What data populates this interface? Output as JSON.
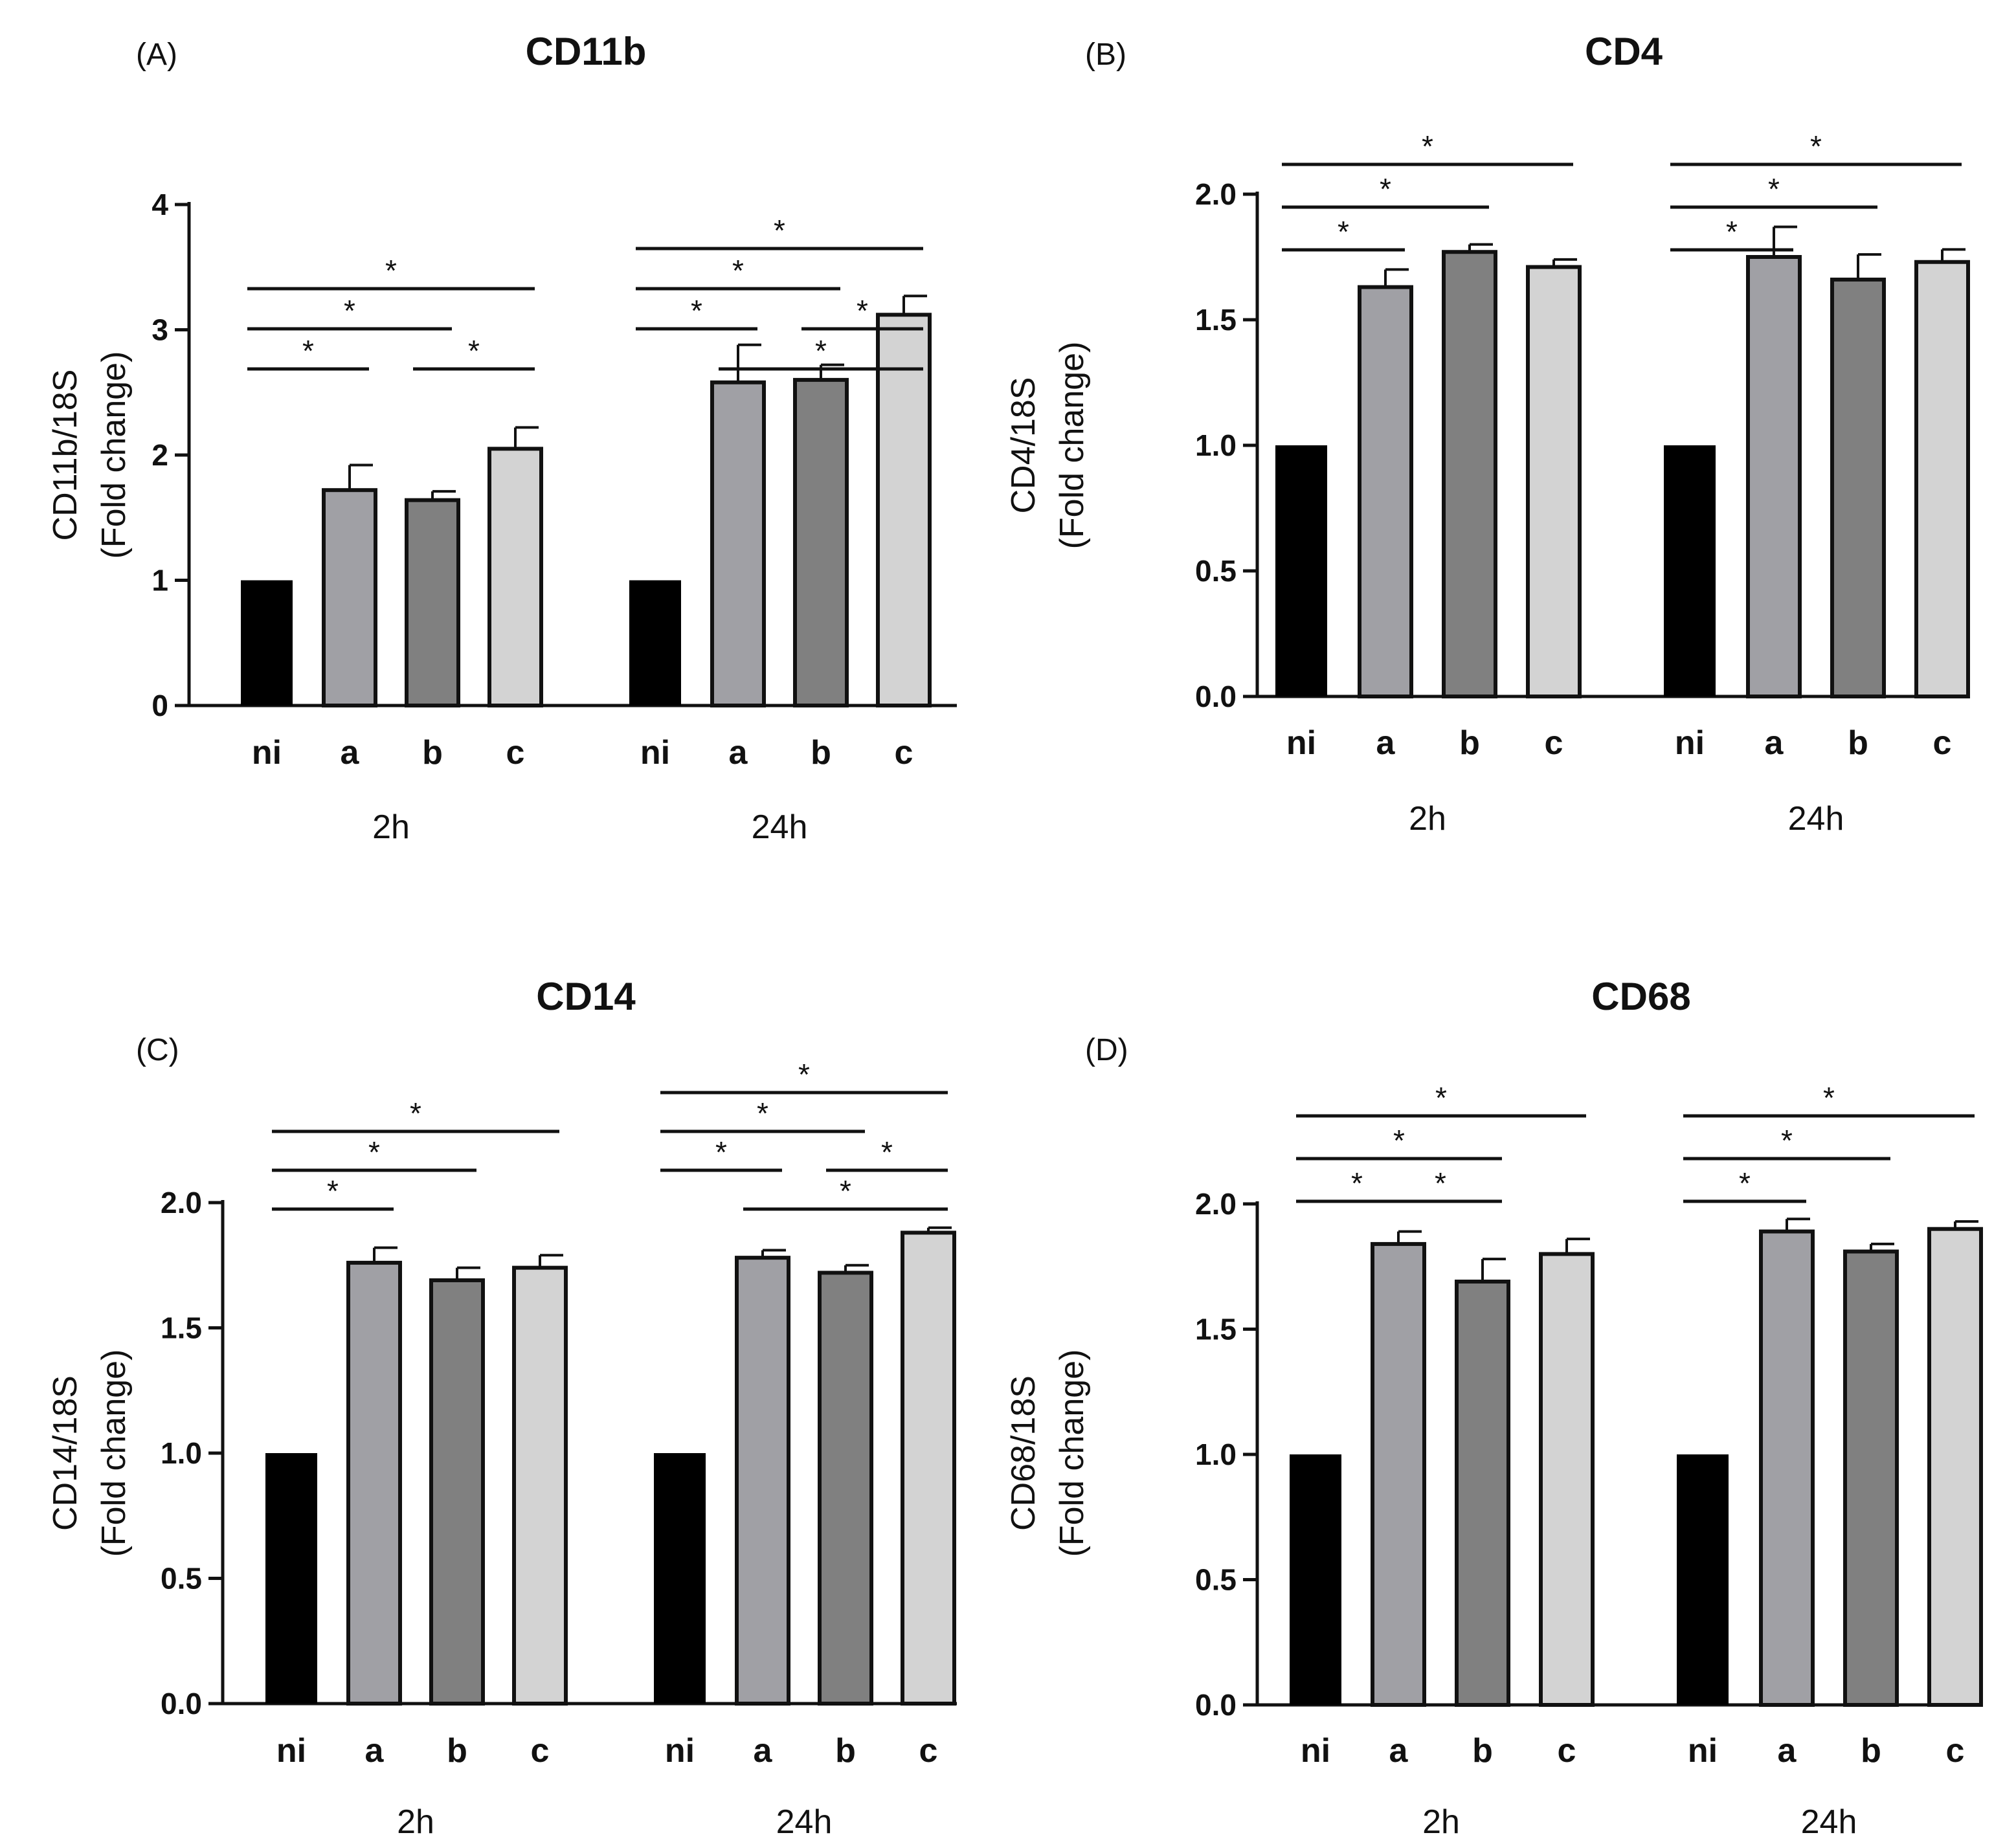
{
  "colors": {
    "ni": "#000000",
    "a": "#a0a0a5",
    "b": "#808080",
    "c": "#d3d3d3",
    "axis": "#111111"
  },
  "chart_data": [
    {
      "type": "bar",
      "panel": "(A)",
      "title": "CD11b",
      "ylabel": [
        "CD11b/18S",
        "(Fold change)"
      ],
      "ylim": [
        0,
        4
      ],
      "yticks": [
        "0",
        "1",
        "2",
        "3",
        "4"
      ],
      "groups": [
        "2h",
        "24h"
      ],
      "categories": [
        "ni",
        "a",
        "b",
        "c"
      ],
      "series": [
        {
          "name": "2h",
          "values": [
            1.0,
            1.72,
            1.64,
            2.05
          ],
          "errors": [
            0,
            0.2,
            0.07,
            0.17
          ]
        },
        {
          "name": "24h",
          "values": [
            1.0,
            2.58,
            2.6,
            3.12
          ],
          "errors": [
            0,
            0.3,
            0.12,
            0.15
          ]
        }
      ],
      "significance": [
        {
          "group": 0,
          "from": 0,
          "to": 1,
          "level": 0,
          "label": "*"
        },
        {
          "group": 0,
          "from": 2,
          "to": 3,
          "level": 0,
          "label": "*"
        },
        {
          "group": 0,
          "from": 0,
          "to": 2,
          "level": 1,
          "label": "*"
        },
        {
          "group": 0,
          "from": 0,
          "to": 3,
          "level": 2,
          "label": "*"
        },
        {
          "group": 1,
          "from": 1,
          "to": 3,
          "level": 0,
          "label": "*"
        },
        {
          "group": 1,
          "from": 0,
          "to": 1,
          "level": 1,
          "label": "*"
        },
        {
          "group": 1,
          "from": 2,
          "to": 3,
          "level": 1,
          "label": "*"
        },
        {
          "group": 1,
          "from": 0,
          "to": 2,
          "level": 2,
          "label": "*"
        },
        {
          "group": 1,
          "from": 0,
          "to": 3,
          "level": 3,
          "label": "*"
        }
      ]
    },
    {
      "type": "bar",
      "panel": "(B)",
      "title": "CD4",
      "ylabel": [
        "CD4/18S",
        "(Fold change)"
      ],
      "ylim": [
        0,
        2
      ],
      "yticks": [
        "0.0",
        "0.5",
        "1.0",
        "1.5",
        "2.0"
      ],
      "groups": [
        "2h",
        "24h"
      ],
      "categories": [
        "ni",
        "a",
        "b",
        "c"
      ],
      "series": [
        {
          "name": "2h",
          "values": [
            1.0,
            1.63,
            1.77,
            1.71
          ],
          "errors": [
            0,
            0.07,
            0.03,
            0.03
          ]
        },
        {
          "name": "24h",
          "values": [
            1.0,
            1.75,
            1.66,
            1.73
          ],
          "errors": [
            0,
            0.12,
            0.1,
            0.05
          ]
        }
      ],
      "significance": [
        {
          "group": 0,
          "from": 0,
          "to": 1,
          "level": 0,
          "label": "*"
        },
        {
          "group": 0,
          "from": 0,
          "to": 2,
          "level": 1,
          "label": "*"
        },
        {
          "group": 0,
          "from": 0,
          "to": 3,
          "level": 2,
          "label": "*"
        },
        {
          "group": 1,
          "from": 0,
          "to": 1,
          "level": 0,
          "label": "*"
        },
        {
          "group": 1,
          "from": 0,
          "to": 2,
          "level": 1,
          "label": "*"
        },
        {
          "group": 1,
          "from": 0,
          "to": 3,
          "level": 2,
          "label": "*"
        }
      ]
    },
    {
      "type": "bar",
      "panel": "(C)",
      "title": "CD14",
      "ylabel": [
        "CD14/18S",
        "(Fold change)"
      ],
      "ylim": [
        0,
        2
      ],
      "yticks": [
        "0.0",
        "0.5",
        "1.0",
        "1.5",
        "2.0"
      ],
      "groups": [
        "2h",
        "24h"
      ],
      "categories": [
        "ni",
        "a",
        "b",
        "c"
      ],
      "series": [
        {
          "name": "2h",
          "values": [
            1.0,
            1.76,
            1.69,
            1.74
          ],
          "errors": [
            0,
            0.06,
            0.05,
            0.05
          ]
        },
        {
          "name": "24h",
          "values": [
            1.0,
            1.78,
            1.72,
            1.88
          ],
          "errors": [
            0,
            0.03,
            0.03,
            0.02
          ]
        }
      ],
      "significance": [
        {
          "group": 0,
          "from": 0,
          "to": 1,
          "level": 0,
          "label": "*"
        },
        {
          "group": 0,
          "from": 0,
          "to": 2,
          "level": 1,
          "label": "*"
        },
        {
          "group": 0,
          "from": 0,
          "to": 3,
          "level": 2,
          "label": "*"
        },
        {
          "group": 1,
          "from": 1,
          "to": 3,
          "level": 0,
          "label": "*"
        },
        {
          "group": 1,
          "from": 0,
          "to": 1,
          "level": 1,
          "label": "*"
        },
        {
          "group": 1,
          "from": 2,
          "to": 3,
          "level": 1,
          "label": "*"
        },
        {
          "group": 1,
          "from": 0,
          "to": 2,
          "level": 2,
          "label": "*"
        },
        {
          "group": 1,
          "from": 0,
          "to": 3,
          "level": 3,
          "label": "*"
        }
      ]
    },
    {
      "type": "bar",
      "panel": "(D)",
      "title": "CD68",
      "ylabel": [
        "CD68/18S",
        "(Fold change)"
      ],
      "ylim": [
        0,
        2
      ],
      "yticks": [
        "0.0",
        "0.5",
        "1.0",
        "1.5",
        "2.0"
      ],
      "groups": [
        "2h",
        "24h"
      ],
      "categories": [
        "ni",
        "a",
        "b",
        "c"
      ],
      "series": [
        {
          "name": "2h",
          "values": [
            1.0,
            1.84,
            1.69,
            1.8
          ],
          "errors": [
            0,
            0.05,
            0.09,
            0.06
          ]
        },
        {
          "name": "24h",
          "values": [
            1.0,
            1.89,
            1.81,
            1.9
          ],
          "errors": [
            0,
            0.05,
            0.03,
            0.03
          ]
        }
      ],
      "significance": [
        {
          "group": 0,
          "from": 0,
          "to": 1,
          "level": 0,
          "label": "*"
        },
        {
          "group": 0,
          "from": 1,
          "to": 2,
          "level": 0,
          "label": "*"
        },
        {
          "group": 0,
          "from": 0,
          "to": 2,
          "level": 1,
          "label": "*"
        },
        {
          "group": 0,
          "from": 0,
          "to": 3,
          "level": 2,
          "label": "*"
        },
        {
          "group": 1,
          "from": 0,
          "to": 1,
          "level": 0,
          "label": "*"
        },
        {
          "group": 1,
          "from": 0,
          "to": 2,
          "level": 1,
          "label": "*"
        },
        {
          "group": 1,
          "from": 0,
          "to": 3,
          "level": 2,
          "label": "*"
        }
      ]
    }
  ]
}
